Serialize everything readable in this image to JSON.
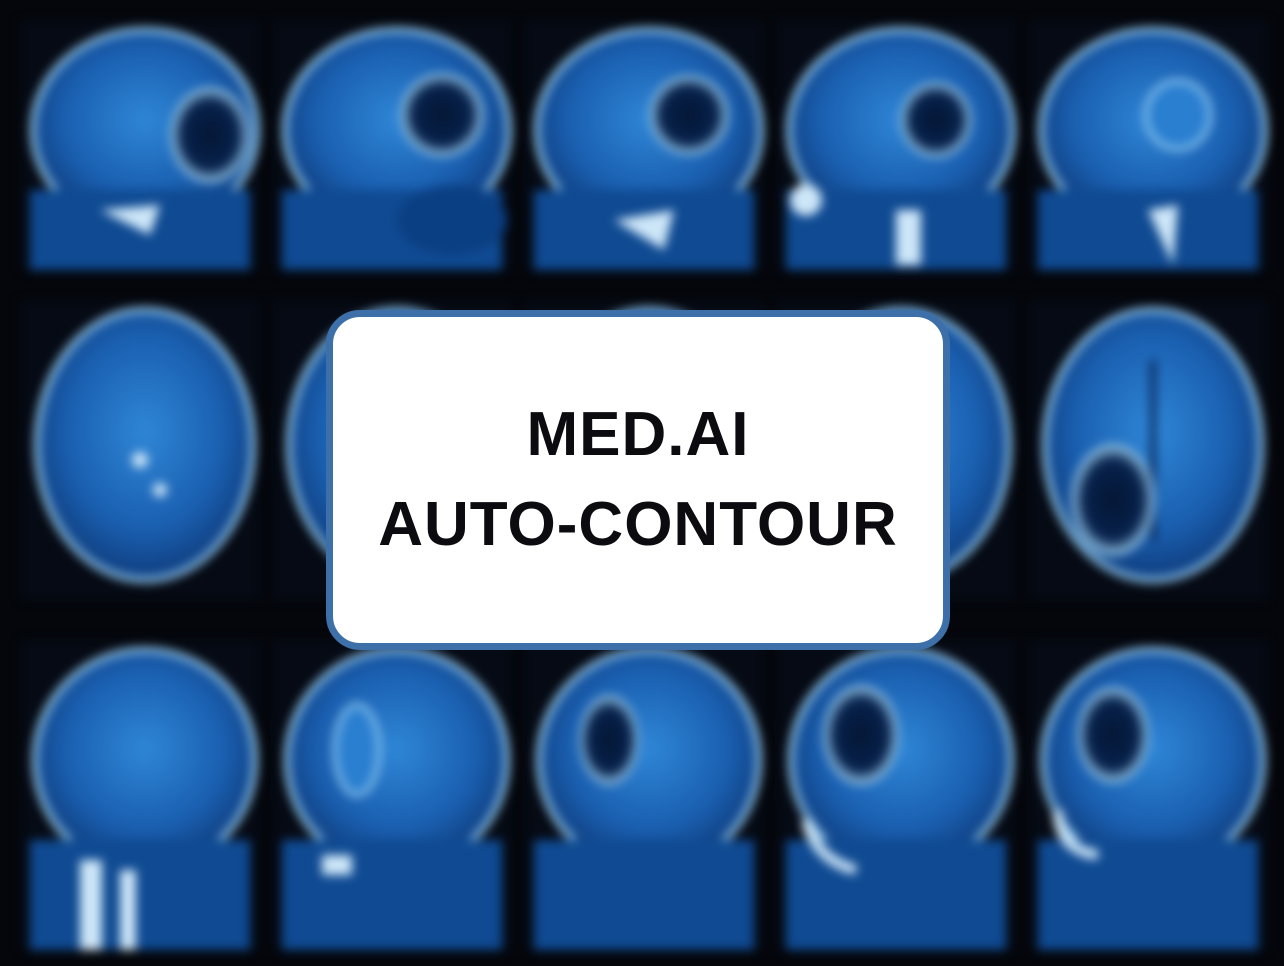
{
  "title_card": {
    "line1": "MED.AI",
    "line2": "AUTO-CONTOUR"
  },
  "background": {
    "description_colors": {
      "scan_blue": "#1e6fc4",
      "scan_dark": "#0a2a5c",
      "scan_light": "#7fc4ee",
      "frame_border": "#3d6fa8"
    }
  }
}
